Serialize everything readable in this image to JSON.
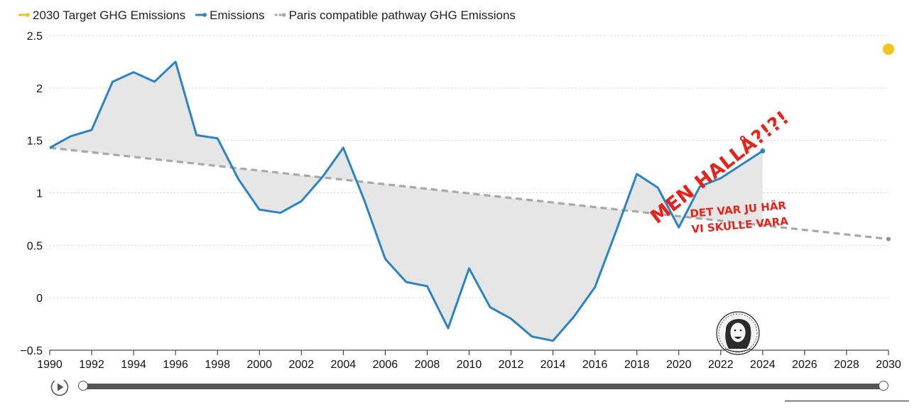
{
  "legend": [
    {
      "label": "2030 Target GHG Emissions",
      "color": "#f2c51c"
    },
    {
      "label": "Emissions",
      "color": "#2a84c4"
    },
    {
      "label": "Paris compatible pathway GHG Emissions",
      "color": "#a8a8a8"
    }
  ],
  "annotation": {
    "big": "MEN HALLÅ?!?!",
    "line1": "DET VAR JU HÄR",
    "line2": "VI SKULLE VARA"
  },
  "chart_data": {
    "type": "line",
    "x": [
      1990,
      1991,
      1992,
      1993,
      1994,
      1995,
      1996,
      1997,
      1998,
      1999,
      2000,
      2001,
      2002,
      2003,
      2004,
      2005,
      2006,
      2007,
      2008,
      2009,
      2010,
      2011,
      2012,
      2013,
      2014,
      2015,
      2016,
      2017,
      2018,
      2019,
      2020,
      2021,
      2022,
      2023,
      2024
    ],
    "series": [
      {
        "name": "Emissions",
        "color": "#2a84c4",
        "values": [
          1.43,
          1.54,
          1.6,
          2.06,
          2.15,
          2.06,
          2.25,
          1.55,
          1.52,
          1.13,
          0.84,
          0.81,
          0.92,
          1.15,
          1.43,
          0.93,
          0.37,
          0.15,
          0.11,
          -0.29,
          0.28,
          -0.09,
          -0.2,
          -0.37,
          -0.41,
          -0.18,
          0.1,
          0.63,
          1.18,
          1.05,
          0.67,
          1.06,
          1.14,
          1.27,
          1.4
        ]
      },
      {
        "name": "Paris compatible pathway GHG Emissions",
        "color": "#a8a8a8",
        "x": [
          1990,
          2030
        ],
        "values": [
          1.43,
          0.56
        ]
      },
      {
        "name": "2030 Target GHG Emissions",
        "color": "#f2c51c",
        "x": [
          2030
        ],
        "values": [
          2.37
        ]
      }
    ],
    "xlim": [
      1990,
      2030
    ],
    "ylim": [
      -0.5,
      2.5
    ],
    "x_ticks": [
      1990,
      1992,
      1994,
      1996,
      1998,
      2000,
      2002,
      2004,
      2006,
      2008,
      2010,
      2012,
      2014,
      2016,
      2018,
      2020,
      2022,
      2024,
      2026,
      2028,
      2030
    ],
    "y_ticks": [
      -0.5,
      0,
      0.5,
      1,
      1.5,
      2,
      2.5
    ],
    "y_tick_labels": [
      "−0.5",
      "0",
      "0.5",
      "1",
      "1.5",
      "2",
      "2.5"
    ],
    "grid": true,
    "legend_position": "top-left"
  }
}
